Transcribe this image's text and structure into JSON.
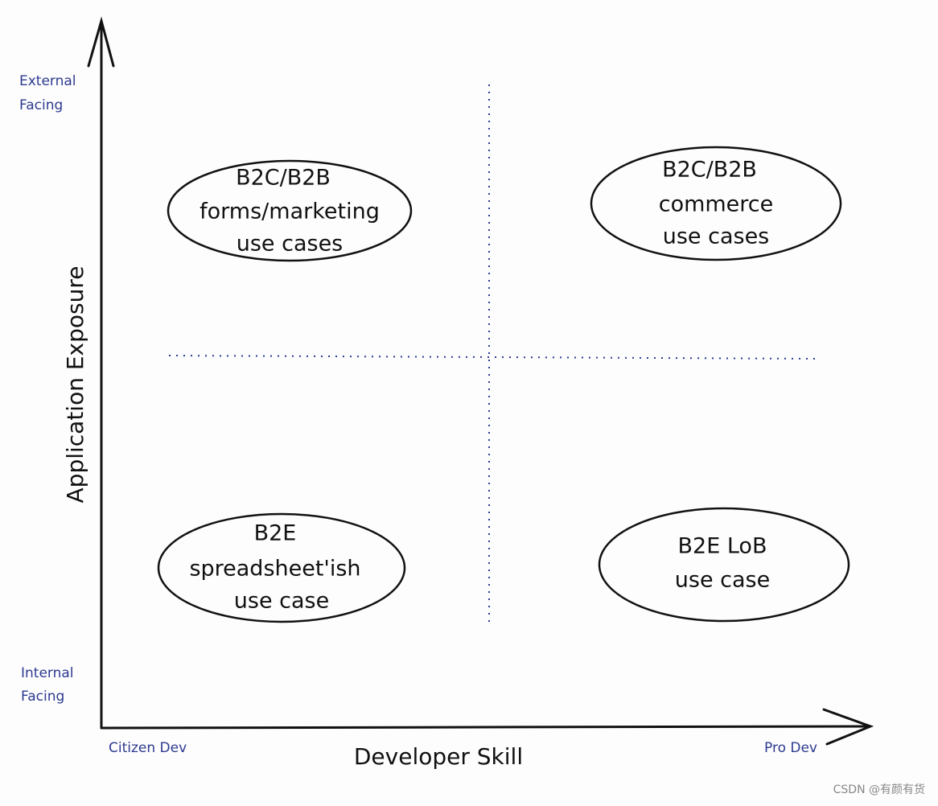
{
  "axes": {
    "y": {
      "label": "Application Exposure",
      "top": [
        "External",
        "Facing"
      ],
      "bottom": [
        "Internal",
        "Facing"
      ]
    },
    "x": {
      "label": "Developer Skill",
      "left": "Citizen Dev",
      "right": "Pro Dev"
    }
  },
  "quadrants": [
    {
      "lines": [
        "B2C/B2B",
        "forms/marketing",
        "use cases"
      ]
    },
    {
      "lines": [
        "B2C/B2B",
        "commerce",
        "use cases"
      ]
    },
    {
      "lines": [
        "B2E",
        "spreadsheet'ish",
        "use case"
      ]
    },
    {
      "lines": [
        "B2E LoB",
        "use case"
      ]
    }
  ],
  "watermark": "CSDN @有颜有货"
}
